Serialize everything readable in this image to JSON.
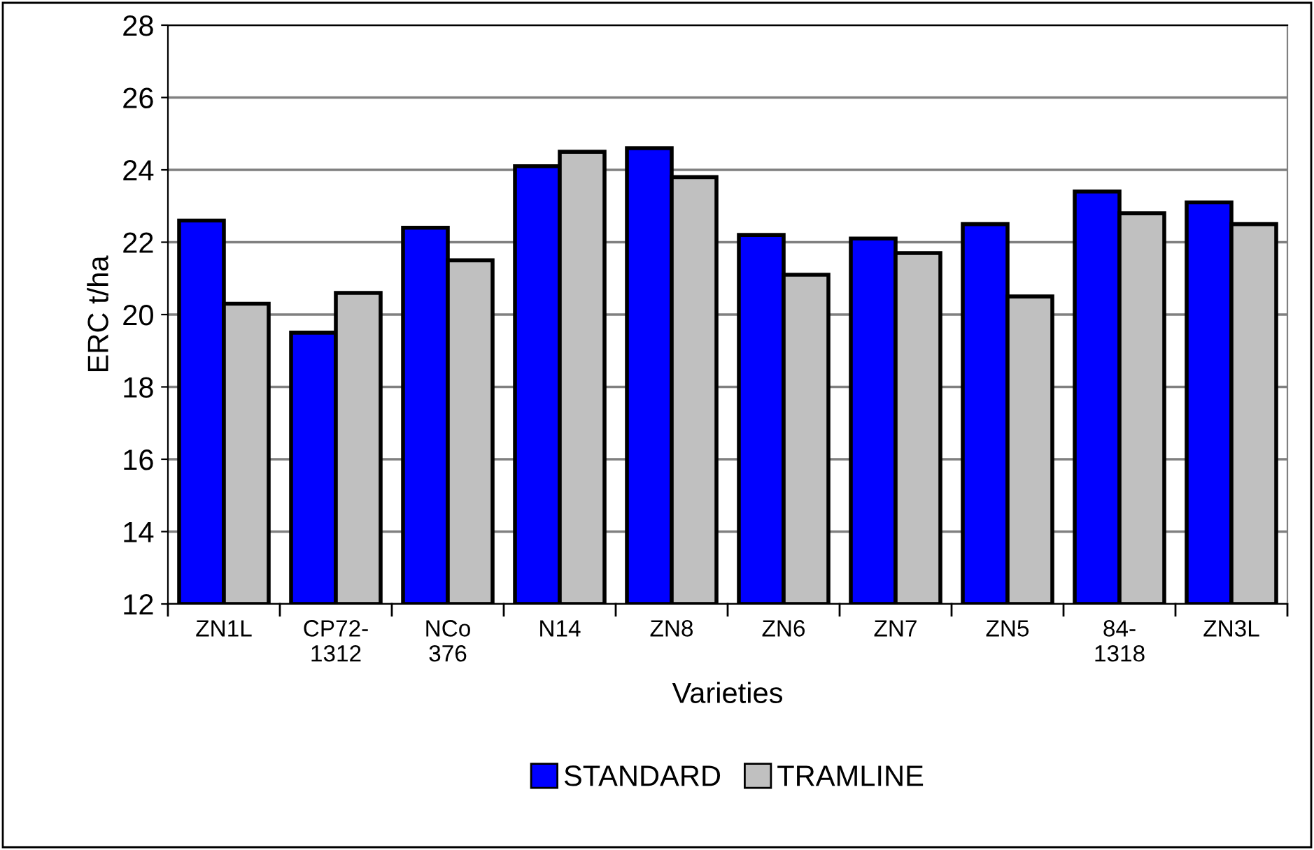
{
  "chart_data": {
    "type": "bar",
    "xlabel": "Varieties",
    "ylabel": "ERC t/ha",
    "categories": [
      "ZN1L",
      "CP72-\n1312",
      "NCo\n376",
      "N14",
      "ZN8",
      "ZN6",
      "ZN7",
      "ZN5",
      "84-\n1318",
      "ZN3L"
    ],
    "series": [
      {
        "name": "STANDARD",
        "color": "#0000ff",
        "values": [
          22.6,
          19.5,
          22.4,
          24.1,
          24.6,
          22.2,
          22.1,
          22.5,
          23.4,
          23.1
        ]
      },
      {
        "name": "TRAMLINE",
        "color": "#c0c0c0",
        "values": [
          20.3,
          20.6,
          21.5,
          24.5,
          23.8,
          21.1,
          21.7,
          20.5,
          22.8,
          22.5
        ]
      }
    ],
    "ylim": [
      12,
      28
    ],
    "yticks": [
      12,
      14,
      16,
      18,
      20,
      22,
      24,
      26,
      28
    ],
    "grid": "y",
    "legend": "bottom"
  }
}
